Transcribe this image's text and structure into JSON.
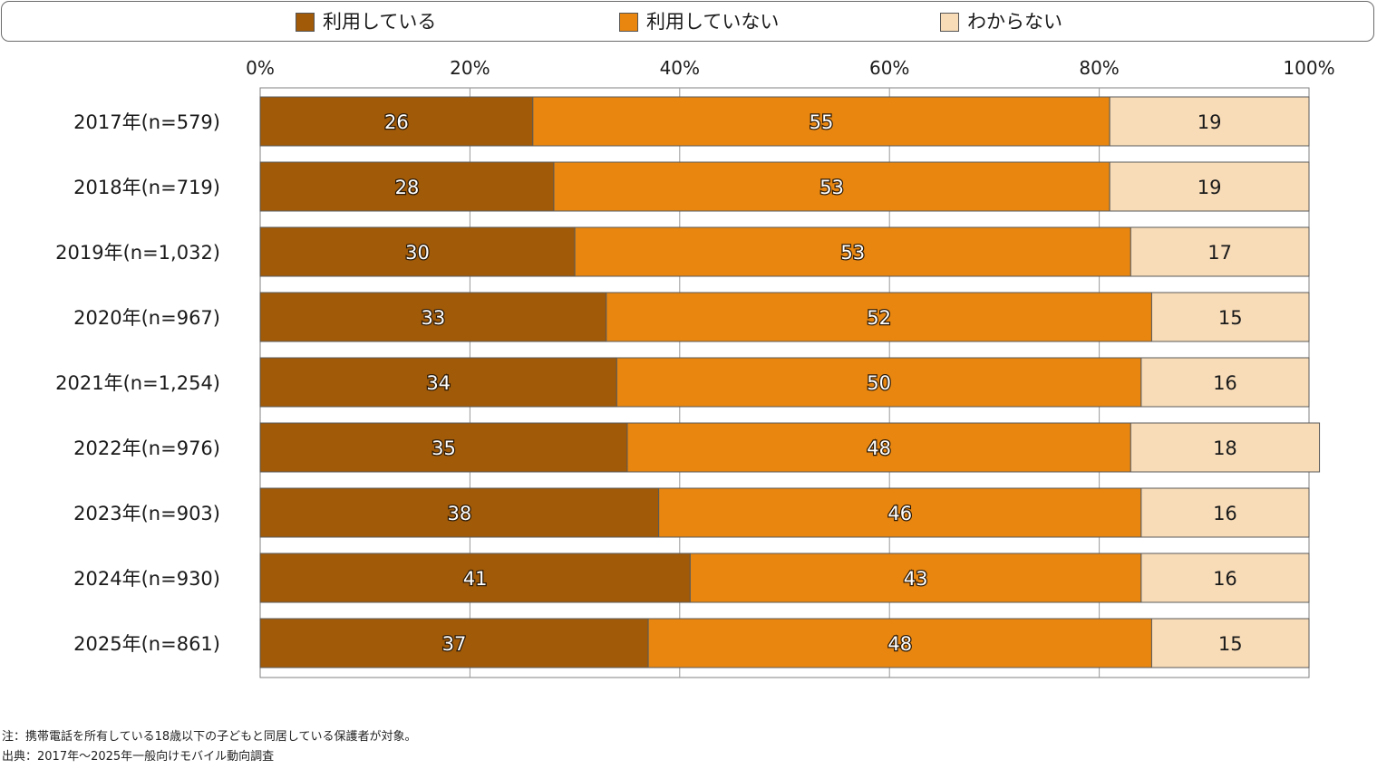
{
  "legend": [
    {
      "label": "利用している",
      "color": "#a05a08"
    },
    {
      "label": "利用していない",
      "color": "#e8860f"
    },
    {
      "label": "わからない",
      "color": "#f8dcb8"
    }
  ],
  "chart_data": {
    "type": "bar",
    "orientation": "horizontal",
    "stacked": true,
    "xlim": [
      0,
      100
    ],
    "x_ticks": [
      "0%",
      "20%",
      "40%",
      "60%",
      "80%",
      "100%"
    ],
    "categories": [
      "2017年(n=579)",
      "2018年(n=719)",
      "2019年(n=1,032)",
      "2020年(n=967)",
      "2021年(n=1,254)",
      "2022年(n=976)",
      "2023年(n=903)",
      "2024年(n=930)",
      "2025年(n=861)"
    ],
    "series": [
      {
        "name": "利用している",
        "color": "#a05a08",
        "values": [
          26,
          28,
          30,
          33,
          34,
          35,
          38,
          41,
          37
        ]
      },
      {
        "name": "利用していない",
        "color": "#e8860f",
        "values": [
          55,
          53,
          53,
          52,
          50,
          48,
          46,
          43,
          48
        ]
      },
      {
        "name": "わからない",
        "color": "#f8dcb8",
        "values": [
          19,
          19,
          17,
          15,
          16,
          18,
          16,
          16,
          15
        ]
      }
    ],
    "grid": true,
    "legend_position": "top"
  },
  "notes": {
    "note": "注：携帯電話を所有している18歳以下の子どもと同居している保護者が対象。",
    "source": "出典：2017年～2025年一般向けモバイル動向調査"
  }
}
